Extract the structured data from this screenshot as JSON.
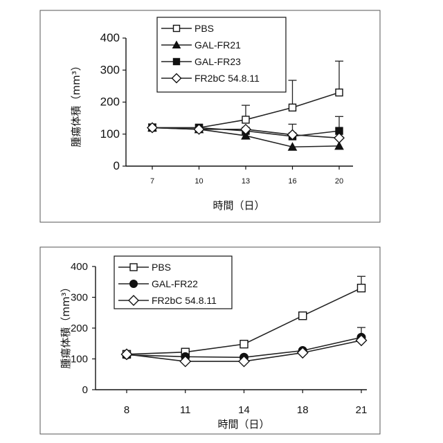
{
  "chart_data": [
    {
      "type": "line",
      "ylabel": "腫瘍体積（mm³）",
      "xlabel": "時間（日）",
      "ylim": [
        0,
        400
      ],
      "yticks": [
        0,
        100,
        200,
        300,
        400
      ],
      "x": [
        7,
        10,
        13,
        16,
        20
      ],
      "grid": false,
      "legend_position": "top-center",
      "series": [
        {
          "name": "PBS",
          "marker": "square-open",
          "values": [
            120,
            120,
            145,
            183,
            230
          ],
          "err": [
            0,
            0,
            45,
            85,
            98
          ]
        },
        {
          "name": "GAL-FR21",
          "marker": "triangle-filled",
          "values": [
            120,
            115,
            95,
            60,
            63
          ],
          "err": [
            0,
            0,
            0,
            0,
            0
          ]
        },
        {
          "name": "GAL-FR23",
          "marker": "square-filled",
          "values": [
            120,
            120,
            110,
            93,
            110
          ],
          "err": [
            0,
            0,
            0,
            38,
            45
          ]
        },
        {
          "name": "FR2bC 54.8.11",
          "marker": "diamond-open",
          "values": [
            120,
            115,
            115,
            98,
            88
          ],
          "err": [
            12,
            0,
            0,
            0,
            0
          ]
        }
      ]
    },
    {
      "type": "line",
      "ylabel": "腫瘍体積（mm³）",
      "xlabel": "時間（日）",
      "ylim": [
        0,
        400
      ],
      "yticks": [
        0,
        100,
        200,
        300,
        400
      ],
      "x": [
        8,
        11,
        14,
        18,
        21
      ],
      "grid": false,
      "legend_position": "top-left",
      "series": [
        {
          "name": "PBS",
          "marker": "square-open",
          "values": [
            115,
            122,
            148,
            240,
            330
          ],
          "err": [
            0,
            0,
            0,
            0,
            38
          ]
        },
        {
          "name": "GAL-FR22",
          "marker": "circle-filled",
          "values": [
            113,
            107,
            105,
            127,
            170
          ],
          "err": [
            0,
            0,
            0,
            0,
            32
          ]
        },
        {
          "name": "FR2bC 54.8.11",
          "marker": "diamond-open",
          "values": [
            115,
            92,
            92,
            120,
            160
          ],
          "err": [
            0,
            0,
            0,
            0,
            0
          ]
        }
      ]
    }
  ]
}
